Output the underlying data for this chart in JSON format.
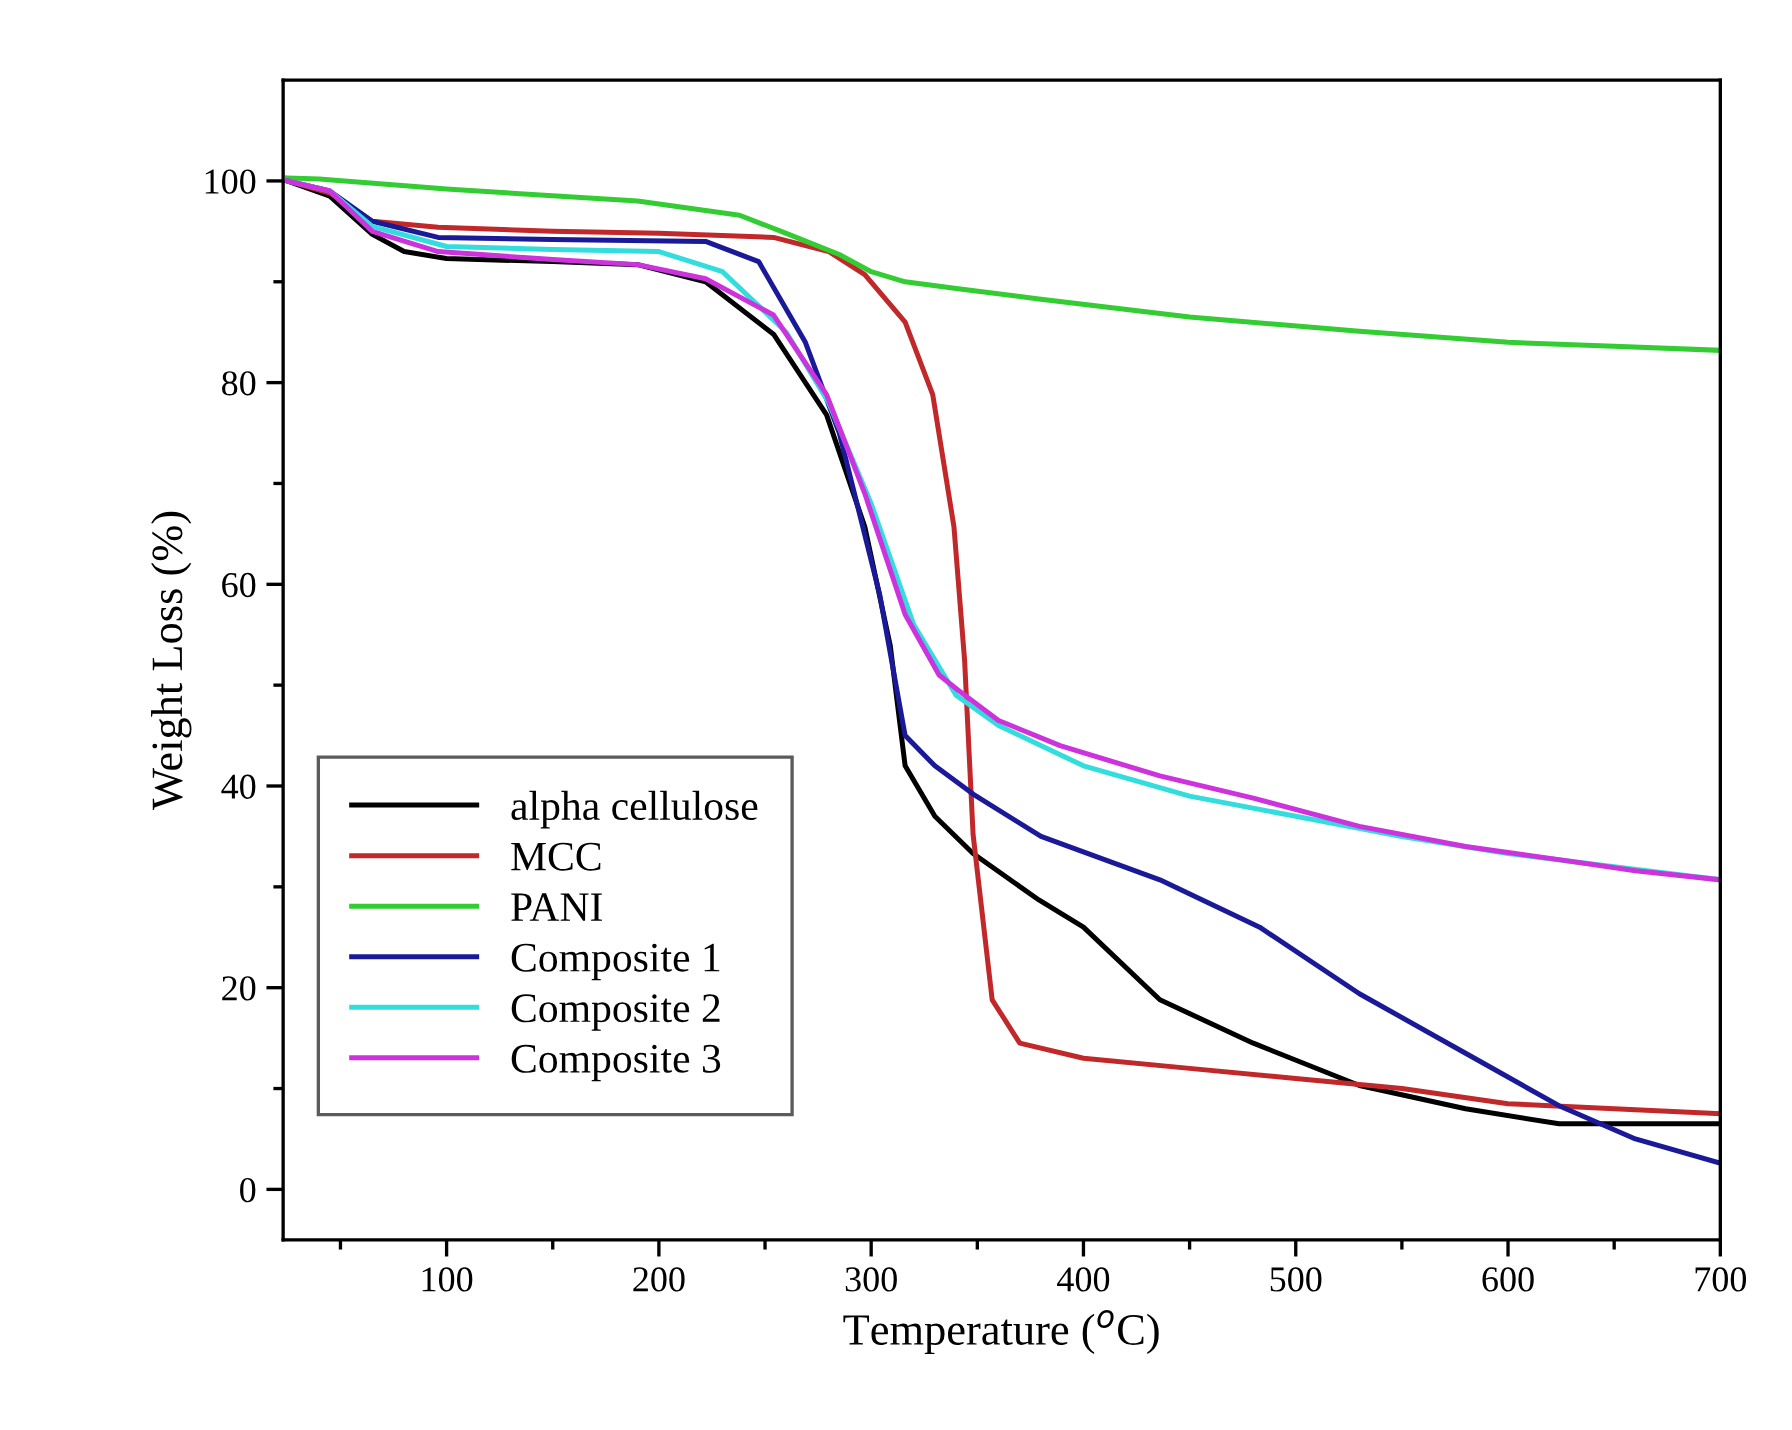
{
  "chart_data": {
    "type": "line",
    "xlabel": "Temperature ($^{o}$C)",
    "ylabel": "Weight Loss (%)",
    "xlim": [
      23,
      700
    ],
    "ylim": [
      -5,
      110
    ],
    "xticks": [
      {
        "value": 50,
        "label": null
      },
      100,
      {
        "value": 150,
        "label": null
      },
      200,
      {
        "value": 250,
        "label": null
      },
      300,
      {
        "value": 350,
        "label": null
      },
      400,
      {
        "value": 450,
        "label": null
      },
      500,
      {
        "value": 550,
        "label": null
      },
      600,
      {
        "value": 650,
        "label": null
      },
      700
    ],
    "yticks": [
      0,
      {
        "value": 10,
        "label": null
      },
      20,
      {
        "value": 30,
        "label": null
      },
      40,
      {
        "value": 50,
        "label": null
      },
      60,
      {
        "value": 70,
        "label": null
      },
      80,
      {
        "value": 90,
        "label": null
      },
      100
    ],
    "grid": false,
    "legend": "bottom left",
    "line_style": "solid",
    "marker": "none",
    "series": [
      {
        "name": "alpha cellulose",
        "color": "#000000",
        "x": [
          25,
          45,
          65,
          80,
          100,
          150,
          190,
          222,
          254,
          279,
          297,
          309,
          316,
          330,
          348,
          379,
          400,
          436,
          480,
          530,
          580,
          624,
          650,
          700
        ],
        "values": [
          100,
          98.5,
          94.7,
          93,
          92.3,
          92,
          91.7,
          90,
          84.8,
          76.8,
          65.7,
          53.9,
          42,
          37,
          33.3,
          28.7,
          26,
          18.8,
          14.5,
          10.3,
          8,
          6.5,
          6.5,
          6.5
        ]
      },
      {
        "name": "MCC",
        "color": "#c0282a",
        "x": [
          25,
          45,
          65,
          96,
          150,
          200,
          254,
          280,
          297,
          316,
          329,
          339,
          344,
          348,
          357,
          370,
          400,
          450,
          500,
          550,
          600,
          650,
          700
        ],
        "values": [
          100,
          98.8,
          96,
          95.4,
          95,
          94.8,
          94.4,
          93,
          90.7,
          86,
          78.8,
          65.7,
          52.5,
          35.2,
          18.8,
          14.5,
          13,
          12,
          11,
          10,
          8.5,
          8,
          7.5
        ]
      },
      {
        "name": "PANI",
        "color": "#33cc33",
        "x": [
          25,
          40,
          100,
          190,
          238,
          260,
          285,
          300,
          316,
          341,
          379,
          450,
          530,
          600,
          650,
          700
        ],
        "values": [
          100.3,
          100.2,
          99.2,
          98,
          96.6,
          94.8,
          92.7,
          91,
          90,
          89.3,
          88.3,
          86.5,
          85.1,
          84,
          83.6,
          83.2
        ]
      },
      {
        "name": "Composite 1",
        "color": "#1a1a99",
        "x": [
          25,
          45,
          65,
          96,
          150,
          222,
          247,
          269,
          285,
          304,
          316,
          330,
          348,
          380,
          436,
          483,
          530,
          580,
          624,
          660,
          700
        ],
        "values": [
          100,
          99,
          96,
          94.4,
          94.2,
          94,
          92,
          84,
          75,
          59,
          45,
          42,
          39.2,
          35,
          30.7,
          26,
          19.4,
          13.5,
          8.3,
          5,
          2.6
        ]
      },
      {
        "name": "Composite 2",
        "color": "#33dddd",
        "x": [
          25,
          45,
          65,
          100,
          150,
          200,
          230,
          260,
          280,
          300,
          320,
          340,
          360,
          400,
          450,
          500,
          550,
          600,
          650,
          700
        ],
        "values": [
          100,
          99,
          95.5,
          93.5,
          93.2,
          93,
          91,
          85,
          78,
          68,
          56,
          49,
          46,
          42,
          39,
          37,
          35,
          33.3,
          32,
          30.7
        ]
      },
      {
        "name": "Composite 3",
        "color": "#cc33dd",
        "x": [
          25,
          45,
          65,
          96,
          150,
          190,
          222,
          254,
          279,
          297,
          316,
          332,
          341,
          360,
          389,
          436,
          480,
          530,
          580,
          624,
          660,
          700
        ],
        "values": [
          100,
          99,
          95,
          93,
          92.2,
          91.7,
          90.3,
          86.7,
          78.8,
          69,
          57,
          51,
          49.5,
          46.5,
          44,
          41,
          38.8,
          36,
          34,
          32.7,
          31.6,
          30.7
        ]
      }
    ]
  }
}
